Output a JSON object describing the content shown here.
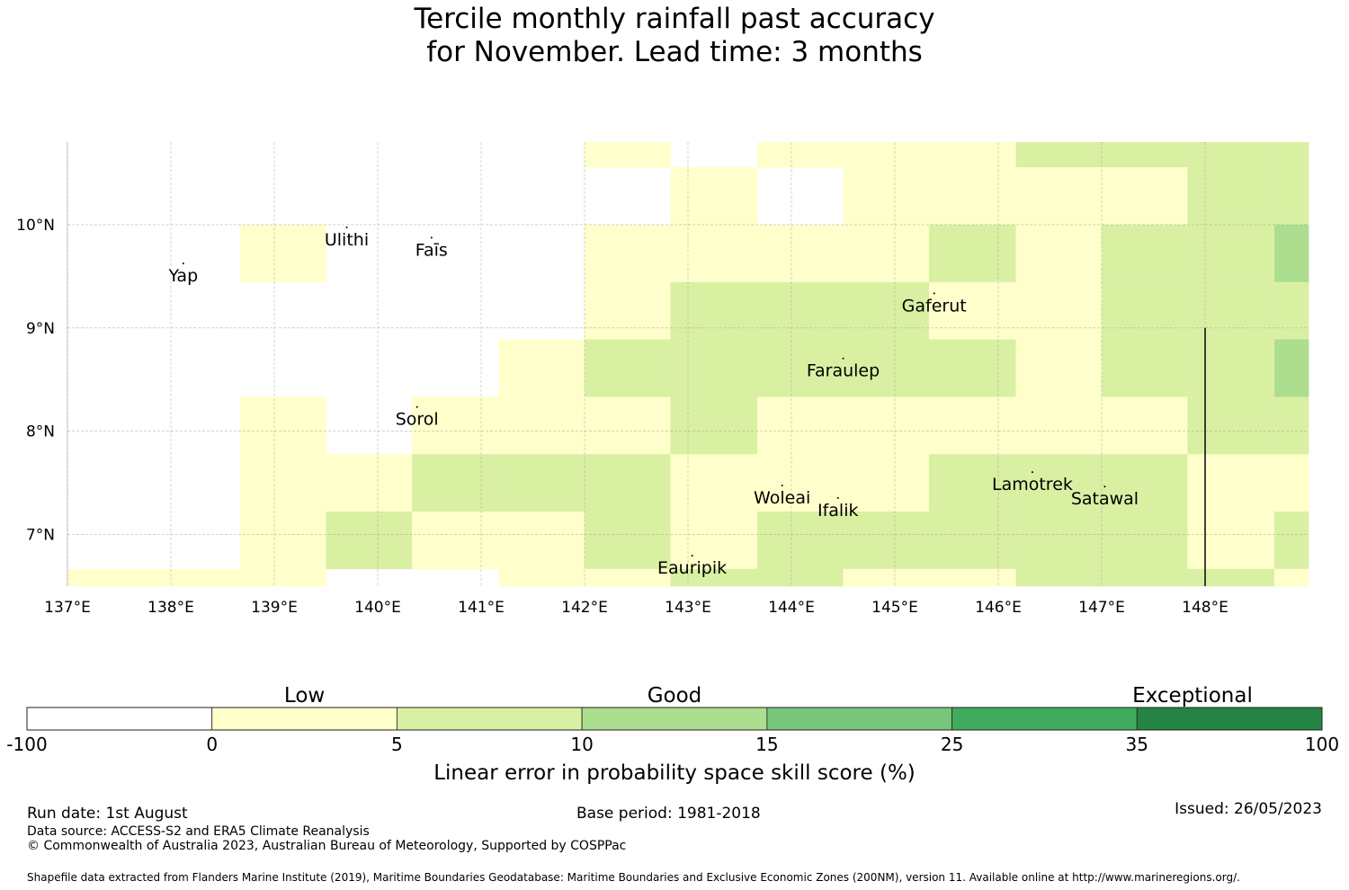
{
  "title": {
    "line1": "Tercile monthly rainfall past accuracy",
    "line2": "for November. Lead time: 3 months"
  },
  "map": {
    "lon_range": [
      137.0,
      149.0
    ],
    "lat_range": [
      6.5,
      10.8
    ],
    "lon_ticks": [
      137,
      138,
      139,
      140,
      141,
      142,
      143,
      144,
      145,
      146,
      147,
      148
    ],
    "lon_tick_labels": [
      "137°E",
      "138°E",
      "139°E",
      "140°E",
      "141°E",
      "142°E",
      "143°E",
      "144°E",
      "145°E",
      "146°E",
      "147°E",
      "148°E"
    ],
    "lat_ticks": [
      7,
      8,
      9,
      10
    ],
    "lat_tick_labels": [
      "7°N",
      "8°N",
      "9°N",
      "10°N"
    ],
    "grid_lines": true,
    "cell_lon_edges": [
      137.0,
      137.83,
      138.67,
      139.5,
      140.33,
      141.17,
      142.0,
      142.83,
      143.67,
      144.5,
      145.33,
      146.17,
      147.0,
      147.83,
      148.67,
      149.0
    ],
    "cell_lat_edges": [
      6.5,
      6.667,
      7.222,
      7.778,
      8.333,
      8.889,
      9.444,
      10.0,
      10.556,
      10.8
    ],
    "cell_categories_top_to_bottom": [
      [
        0,
        0,
        0,
        0,
        0,
        0,
        1,
        0,
        1,
        1,
        1,
        2,
        2,
        2,
        2
      ],
      [
        0,
        0,
        0,
        0,
        0,
        0,
        0,
        1,
        0,
        1,
        1,
        1,
        1,
        2,
        2
      ],
      [
        0,
        0,
        1,
        0,
        0,
        0,
        1,
        1,
        1,
        1,
        2,
        1,
        2,
        2,
        3
      ],
      [
        0,
        0,
        0,
        0,
        0,
        0,
        1,
        2,
        2,
        2,
        1,
        1,
        2,
        2,
        2
      ],
      [
        0,
        0,
        0,
        0,
        0,
        1,
        2,
        2,
        2,
        2,
        2,
        1,
        2,
        2,
        3
      ],
      [
        0,
        0,
        1,
        0,
        1,
        1,
        1,
        2,
        1,
        1,
        1,
        1,
        1,
        2,
        2
      ],
      [
        0,
        0,
        1,
        1,
        2,
        2,
        2,
        1,
        1,
        1,
        2,
        2,
        2,
        1,
        1
      ],
      [
        0,
        0,
        1,
        2,
        1,
        1,
        2,
        1,
        2,
        2,
        2,
        2,
        2,
        1,
        2
      ],
      [
        1,
        1,
        1,
        0,
        0,
        1,
        1,
        2,
        2,
        1,
        1,
        2,
        2,
        2,
        1
      ]
    ],
    "boundary_line": {
      "lon": 148.0,
      "lat_from": 6.5,
      "lat_to": 9.0
    },
    "islands": [
      {
        "name": "Ulithi",
        "lon": 139.7,
        "lat": 9.87
      },
      {
        "name": "Fais",
        "lon": 140.52,
        "lat": 9.77
      },
      {
        "name": "Yap",
        "lon": 138.12,
        "lat": 9.52
      },
      {
        "name": "Gaferut",
        "lon": 145.38,
        "lat": 9.23
      },
      {
        "name": "Faraulep",
        "lon": 144.5,
        "lat": 8.6
      },
      {
        "name": "Sorol",
        "lon": 140.38,
        "lat": 8.13
      },
      {
        "name": "Woleai",
        "lon": 143.91,
        "lat": 7.37
      },
      {
        "name": "Ifalik",
        "lon": 144.45,
        "lat": 7.25
      },
      {
        "name": "Lamotrek",
        "lon": 146.33,
        "lat": 7.5
      },
      {
        "name": "Satawal",
        "lon": 147.03,
        "lat": 7.36
      },
      {
        "name": "Eauripik",
        "lon": 143.04,
        "lat": 6.69
      }
    ],
    "island_labels": [
      "Ulithi",
      "Faīs",
      "Yap",
      "Gaferut",
      "Faraulep",
      "Sorol",
      "Woleai",
      "Ifalik",
      "Lamotrek",
      "Satawal",
      "Eauripik"
    ]
  },
  "legend": {
    "category_labels": [
      "Low",
      "Good",
      "Exceptional"
    ],
    "bounds": [
      "-100",
      "0",
      "5",
      "10",
      "15",
      "25",
      "35",
      "100"
    ],
    "colors": [
      "#ffffff",
      "#ffffcc",
      "#d9f0a3",
      "#addd8e",
      "#78c679",
      "#41ab5d",
      "#238443"
    ],
    "label": "Linear error in probability space skill score (%)"
  },
  "footer": {
    "run_date": "Run date: 1st August",
    "base_period": "Base period: 1981-2018",
    "issued": "Issued: 26/05/2023",
    "data_source": "Data source: ACCESS-S2 and ERA5 Climate Reanalysis",
    "copyright": "© Commonwealth of Australia 2023, Australian Bureau of Meteorology, Supported by COSPPac",
    "shapefile": "Shapefile data extracted from Flanders Marine Institute (2019), Maritime Boundaries Geodatabase: Maritime Boundaries and Exclusive Economic Zones (200NM), version 11. Available online at http://www.marineregions.org/."
  }
}
